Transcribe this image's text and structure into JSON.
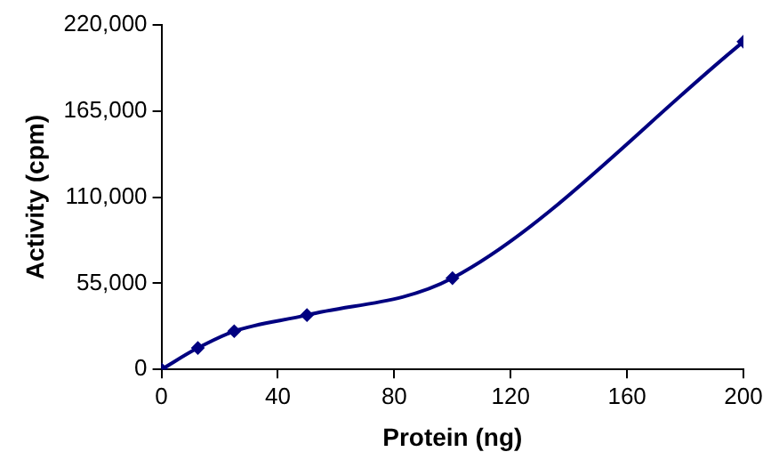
{
  "chart_data": {
    "type": "line",
    "xlabel": "Protein (ng)",
    "ylabel": "Activity (cpm)",
    "x": [
      0,
      12.5,
      25,
      50,
      100,
      200
    ],
    "series": [
      {
        "color": "#000080",
        "values": [
          0,
          13700,
          24400,
          34700,
          58300,
          209300
        ]
      }
    ],
    "xlim": [
      0,
      200
    ],
    "xticks": [
      0,
      40,
      80,
      120,
      160,
      200
    ],
    "ylim": [
      0,
      220000
    ],
    "yticks": [
      {
        "value": 0,
        "label": "0"
      },
      {
        "value": 55000,
        "label": "55,000"
      },
      {
        "value": 110000,
        "label": "110,000"
      },
      {
        "value": 165000,
        "label": "165,000"
      },
      {
        "value": 220000,
        "label": "220,000"
      }
    ],
    "grid": false,
    "legend": false,
    "marker": "diamond",
    "line_style": "solid"
  }
}
